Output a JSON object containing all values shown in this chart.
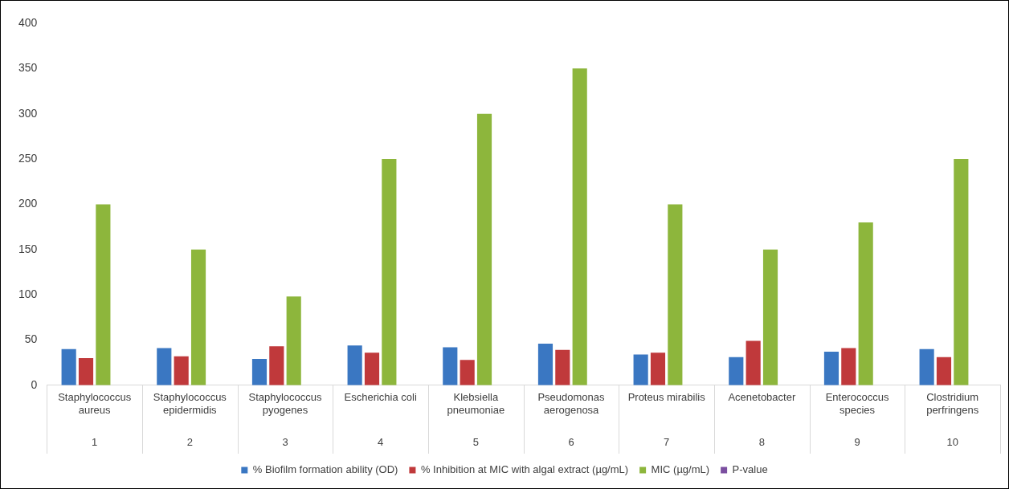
{
  "chart_data": {
    "type": "bar",
    "categories": [
      "Staphylococcus aureus",
      "Staphylococcus epidermidis",
      "Staphylococcus pyogenes",
      "Escherichia coli",
      "Klebsiella pneumoniae",
      "Pseudomonas aerogenosa",
      "Proteus mirabilis",
      "Acenetobacter",
      "Enterococcus species",
      "Clostridium perfringens"
    ],
    "series": [
      {
        "name": "% Biofilm formation ability (OD)",
        "color": "#3a77c2",
        "values": [
          40,
          41,
          29,
          44,
          42,
          46,
          34,
          31,
          37,
          40
        ]
      },
      {
        "name": "% Inhibition at MIC with algal extract (µg/mL)",
        "color": "#c0393b",
        "values": [
          30,
          32,
          43,
          36,
          28,
          39,
          36,
          49,
          41,
          31
        ]
      },
      {
        "name": "MIC (µg/mL)",
        "color": "#8db63c",
        "values": [
          200,
          150,
          98,
          250,
          300,
          350,
          200,
          150,
          180,
          250
        ]
      },
      {
        "name": "P-value",
        "color": "#7b4fa0",
        "values": [
          null,
          null,
          null,
          null,
          null,
          null,
          null,
          null,
          null,
          null
        ]
      }
    ],
    "annotations": [
      "1",
      "2",
      "3",
      "4",
      "5",
      "6",
      "7",
      "8",
      "9",
      "10"
    ],
    "ylim": [
      0,
      400
    ],
    "yticks": [
      0,
      50,
      100,
      150,
      200,
      250,
      300,
      350,
      400
    ],
    "grid": false,
    "legend": "bottom"
  }
}
